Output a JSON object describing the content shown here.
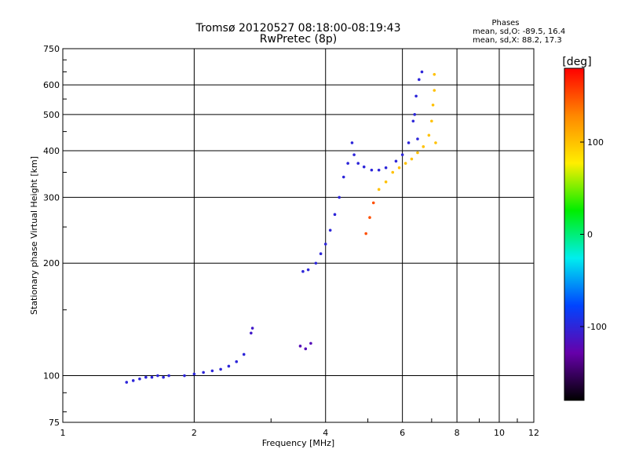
{
  "chart_data": {
    "type": "scatter",
    "title": "Tromsø 20120527 08:18:00-08:19:43",
    "subtitle": "RwPretec (8p)",
    "xlabel": "Frequency [MHz]",
    "ylabel": "Stationary phase Virtual Height [km]",
    "x_scale": "log",
    "y_scale": "log",
    "xlim": [
      1,
      12
    ],
    "ylim": [
      75,
      750
    ],
    "x_ticks": [
      1,
      2,
      4,
      6,
      8,
      10,
      12
    ],
    "y_ticks": [
      75,
      100,
      200,
      300,
      400,
      500,
      600,
      750
    ],
    "grid": true,
    "phase_stats": {
      "title": "Phases",
      "line1": "mean, sd,O: -89.5, 16.4",
      "line2": "mean, sd,X:  88.2, 17.3"
    },
    "colorbar": {
      "label": "[deg]",
      "range": [
        -180,
        180
      ],
      "ticks": [
        -100,
        0,
        100
      ],
      "colors": [
        "#ff0000",
        "#ff8800",
        "#ffee00",
        "#00ee00",
        "#00eeee",
        "#0044ff",
        "#6600aa",
        "#000000"
      ]
    },
    "series": [
      {
        "values": [
          {
            "x": 1.4,
            "y": 96,
            "p": -100
          },
          {
            "x": 1.45,
            "y": 97,
            "p": -100
          },
          {
            "x": 1.5,
            "y": 98,
            "p": -100
          },
          {
            "x": 1.55,
            "y": 99,
            "p": -100
          },
          {
            "x": 1.6,
            "y": 99,
            "p": -100
          },
          {
            "x": 1.65,
            "y": 100,
            "p": -100
          },
          {
            "x": 1.7,
            "y": 99,
            "p": -100
          },
          {
            "x": 1.75,
            "y": 100,
            "p": -100
          },
          {
            "x": 1.9,
            "y": 100,
            "p": -100
          },
          {
            "x": 2.0,
            "y": 101,
            "p": -100
          },
          {
            "x": 2.1,
            "y": 102,
            "p": -100
          },
          {
            "x": 2.2,
            "y": 103,
            "p": -100
          },
          {
            "x": 2.3,
            "y": 104,
            "p": -100
          },
          {
            "x": 2.4,
            "y": 106,
            "p": -100
          },
          {
            "x": 2.5,
            "y": 109,
            "p": -100
          },
          {
            "x": 2.6,
            "y": 114,
            "p": -100
          },
          {
            "x": 2.7,
            "y": 130,
            "p": -110
          },
          {
            "x": 2.72,
            "y": 134,
            "p": -110
          },
          {
            "x": 3.5,
            "y": 120,
            "p": -120
          },
          {
            "x": 3.6,
            "y": 118,
            "p": -120
          },
          {
            "x": 3.7,
            "y": 122,
            "p": -120
          },
          {
            "x": 3.55,
            "y": 190,
            "p": -100
          },
          {
            "x": 3.65,
            "y": 192,
            "p": -100
          },
          {
            "x": 3.8,
            "y": 200,
            "p": -100
          },
          {
            "x": 3.9,
            "y": 212,
            "p": -100
          },
          {
            "x": 4.0,
            "y": 225,
            "p": -100
          },
          {
            "x": 4.1,
            "y": 245,
            "p": -100
          },
          {
            "x": 4.2,
            "y": 270,
            "p": -100
          },
          {
            "x": 4.3,
            "y": 300,
            "p": -100
          },
          {
            "x": 4.4,
            "y": 340,
            "p": -100
          },
          {
            "x": 4.5,
            "y": 370,
            "p": -100
          },
          {
            "x": 4.6,
            "y": 420,
            "p": -100
          },
          {
            "x": 4.65,
            "y": 390,
            "p": -100
          },
          {
            "x": 4.75,
            "y": 370,
            "p": -100
          },
          {
            "x": 4.9,
            "y": 362,
            "p": -100
          },
          {
            "x": 5.1,
            "y": 355,
            "p": -100
          },
          {
            "x": 5.3,
            "y": 355,
            "p": -100
          },
          {
            "x": 5.5,
            "y": 360,
            "p": -100
          },
          {
            "x": 5.8,
            "y": 375,
            "p": -100
          },
          {
            "x": 6.0,
            "y": 390,
            "p": -100
          },
          {
            "x": 6.2,
            "y": 420,
            "p": -100
          },
          {
            "x": 6.35,
            "y": 480,
            "p": -100
          },
          {
            "x": 6.45,
            "y": 560,
            "p": -100
          },
          {
            "x": 6.55,
            "y": 620,
            "p": -100
          },
          {
            "x": 6.65,
            "y": 650,
            "p": -100
          },
          {
            "x": 6.4,
            "y": 500,
            "p": -100
          },
          {
            "x": 6.5,
            "y": 430,
            "p": -100
          }
        ]
      },
      {
        "values": [
          {
            "x": 4.95,
            "y": 240,
            "p": 150
          },
          {
            "x": 5.05,
            "y": 265,
            "p": 150
          },
          {
            "x": 5.15,
            "y": 290,
            "p": 150
          },
          {
            "x": 5.3,
            "y": 315,
            "p": 100
          },
          {
            "x": 5.5,
            "y": 330,
            "p": 100
          },
          {
            "x": 5.7,
            "y": 350,
            "p": 100
          },
          {
            "x": 5.9,
            "y": 360,
            "p": 100
          },
          {
            "x": 6.1,
            "y": 370,
            "p": 100
          },
          {
            "x": 6.3,
            "y": 380,
            "p": 100
          },
          {
            "x": 6.5,
            "y": 395,
            "p": 100
          },
          {
            "x": 6.7,
            "y": 410,
            "p": 100
          },
          {
            "x": 6.9,
            "y": 440,
            "p": 100
          },
          {
            "x": 7.0,
            "y": 480,
            "p": 100
          },
          {
            "x": 7.05,
            "y": 530,
            "p": 100
          },
          {
            "x": 7.1,
            "y": 580,
            "p": 100
          },
          {
            "x": 7.1,
            "y": 640,
            "p": 100
          },
          {
            "x": 7.15,
            "y": 420,
            "p": 100
          }
        ]
      }
    ]
  }
}
